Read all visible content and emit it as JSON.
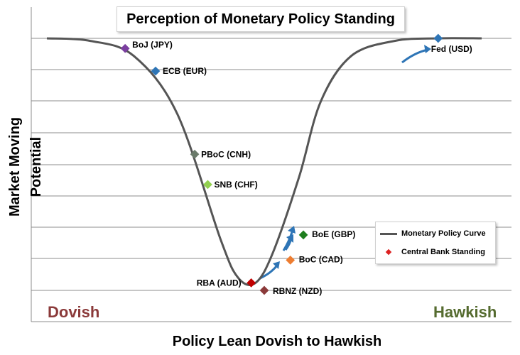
{
  "chart_data": {
    "type": "line",
    "title": "Perception of Monetary Policy Standing",
    "xlabel": "Policy Lean Dovish to Hawkish",
    "ylabel": "Market Moving Potential",
    "grid": true,
    "legend_position": "right",
    "side_labels": {
      "left": "Dovish",
      "right": "Hawkish"
    },
    "xlim": [
      0,
      100
    ],
    "ylim": [
      0,
      100
    ],
    "series": [
      {
        "name": "Monetary Policy Curve",
        "color": "#555555",
        "x": [
          0,
          10,
          20,
          30,
          40,
          44,
          48,
          52,
          58,
          63,
          70,
          80,
          90,
          100
        ],
        "y": [
          100,
          99,
          93,
          70,
          20,
          5,
          3,
          15,
          45,
          75,
          93,
          99,
          100,
          100
        ]
      },
      {
        "name": "Central Bank Standing",
        "color": "#dd2222",
        "points": [
          {
            "label": "BoJ (JPY)",
            "x": 18,
            "y": 96,
            "color": "#7b3fa0"
          },
          {
            "label": "ECB (EUR)",
            "x": 25,
            "y": 87,
            "color": "#2e75b6"
          },
          {
            "label": "PBoC (CNH)",
            "x": 34,
            "y": 54,
            "color": "#6b7b6b"
          },
          {
            "label": "SNB (CHF)",
            "x": 37,
            "y": 42,
            "color": "#92d050"
          },
          {
            "label": "RBA (AUD)",
            "x": 47,
            "y": 3,
            "color": "#c00000"
          },
          {
            "label": "RBNZ (NZD)",
            "x": 50,
            "y": 0,
            "color": "#8b3a3a"
          },
          {
            "label": "BoC (CAD)",
            "x": 56,
            "y": 12,
            "color": "#ed7d31"
          },
          {
            "label": "BoE (GBP)",
            "x": 59,
            "y": 22,
            "color": "#1e7e1e"
          },
          {
            "label": "Fed (USD)",
            "x": 90,
            "y": 100,
            "color": "#2e75b6"
          }
        ]
      }
    ]
  }
}
